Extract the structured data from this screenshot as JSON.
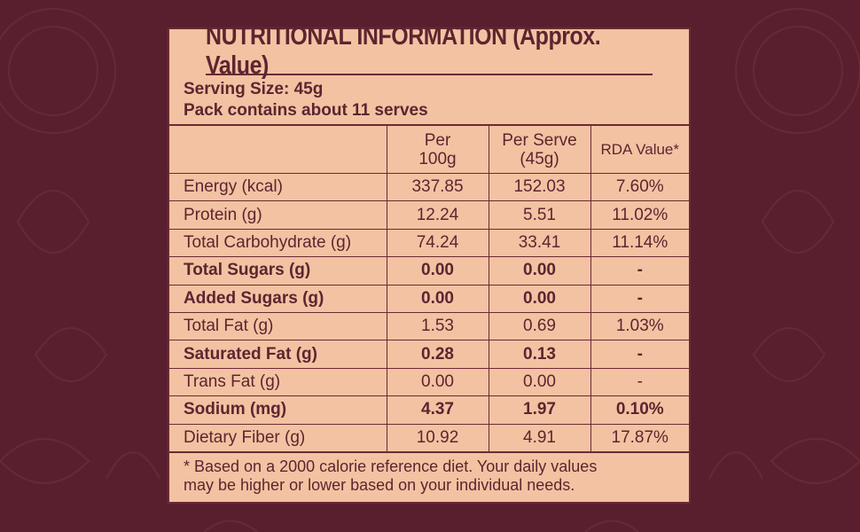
{
  "label": {
    "title": "NUTRITIONAL INFORMATION (Approx. Value)",
    "serving_size": "Serving Size: 45g",
    "pack_contains": "Pack contains about 11 serves",
    "headers": {
      "nutrient": "",
      "per_100g": [
        "Per",
        "100g"
      ],
      "per_serve": [
        "Per Serve",
        "(45g)"
      ],
      "rda": "RDA Value*"
    },
    "rows": [
      {
        "name": "Energy (kcal)",
        "per_100g": "337.85",
        "per_serve": "152.03",
        "rda": "7.60%",
        "bold": false
      },
      {
        "name": "Protein (g)",
        "per_100g": "12.24",
        "per_serve": "5.51",
        "rda": "11.02%",
        "bold": false
      },
      {
        "name": "Total Carbohydrate (g)",
        "per_100g": "74.24",
        "per_serve": "33.41",
        "rda": "11.14%",
        "bold": false
      },
      {
        "name": "Total Sugars (g)",
        "per_100g": "0.00",
        "per_serve": "0.00",
        "rda": "-",
        "bold": true
      },
      {
        "name": "Added Sugars (g)",
        "per_100g": "0.00",
        "per_serve": "0.00",
        "rda": "-",
        "bold": true
      },
      {
        "name": "Total Fat (g)",
        "per_100g": "1.53",
        "per_serve": "0.69",
        "rda": "1.03%",
        "bold": false
      },
      {
        "name": "Saturated Fat (g)",
        "per_100g": "0.28",
        "per_serve": "0.13",
        "rda": "-",
        "bold": true
      },
      {
        "name": "Trans Fat (g)",
        "per_100g": "0.00",
        "per_serve": "0.00",
        "rda": "-",
        "bold": false
      },
      {
        "name": "Sodium (mg)",
        "per_100g": "4.37",
        "per_serve": "1.97",
        "rda": "0.10%",
        "bold": true
      },
      {
        "name": "Dietary Fiber (g)",
        "per_100g": "10.92",
        "per_serve": "4.91",
        "rda": "17.87%",
        "bold": false
      }
    ],
    "footnote": [
      "* Based on a 2000 calorie reference diet. Your daily values",
      "may be higher or lower based on your individual needs."
    ]
  },
  "colors": {
    "background": "#5a1f2e",
    "panel": "#f3c2a2",
    "text": "#5c2530",
    "border": "#6b2a34"
  }
}
